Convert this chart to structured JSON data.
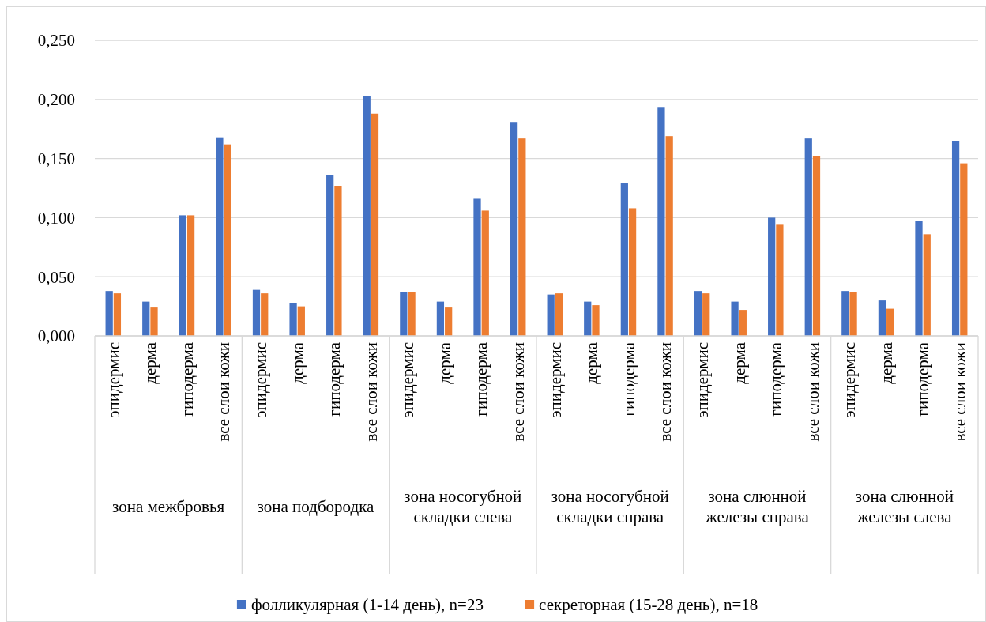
{
  "chart_data": {
    "type": "bar",
    "categories": [
      "эпидермис",
      "дерма",
      "гиподерма",
      "все слои кожи",
      "эпидермис",
      "дерма",
      "гиподерма",
      "все слои кожи",
      "эпидермис",
      "дерма",
      "гиподерма",
      "все слои кожи",
      "эпидермис",
      "дерма",
      "гиподерма",
      "все слои кожи",
      "эпидермис",
      "дерма",
      "гиподерма",
      "все слои кожи",
      "эпидермис",
      "дерма",
      "гиподерма",
      "все слои кожи"
    ],
    "annotations": [
      "зона межбровья",
      "зона подбородка",
      "зона носогубной складки слева",
      "зона носогубной складки справа",
      "зона слюнной железы справа",
      "зона слюнной железы слева"
    ],
    "series": [
      {
        "name": "фолликулярная (1-14 день), n=23",
        "color": "#4472c4",
        "values": [
          0.038,
          0.029,
          0.102,
          0.168,
          0.039,
          0.028,
          0.136,
          0.203,
          0.037,
          0.029,
          0.116,
          0.181,
          0.035,
          0.029,
          0.129,
          0.193,
          0.038,
          0.029,
          0.1,
          0.167,
          0.038,
          0.03,
          0.097,
          0.165
        ]
      },
      {
        "name": "секреторная (15-28 день), n=18",
        "color": "#ed7d31",
        "values": [
          0.036,
          0.024,
          0.102,
          0.162,
          0.036,
          0.025,
          0.127,
          0.188,
          0.037,
          0.024,
          0.106,
          0.167,
          0.036,
          0.026,
          0.108,
          0.169,
          0.036,
          0.022,
          0.094,
          0.152,
          0.037,
          0.023,
          0.086,
          0.146
        ]
      }
    ],
    "ylim": [
      0,
      0.25
    ],
    "yticks": [
      {
        "value": 0,
        "label": "0,000"
      },
      {
        "value": 0.05,
        "label": "0,050"
      },
      {
        "value": 0.1,
        "label": "0,100"
      },
      {
        "value": 0.15,
        "label": "0,150"
      },
      {
        "value": 0.2,
        "label": "0,200"
      },
      {
        "value": 0.25,
        "label": "0,250"
      }
    ],
    "grid": "y",
    "legend": "bottom"
  }
}
